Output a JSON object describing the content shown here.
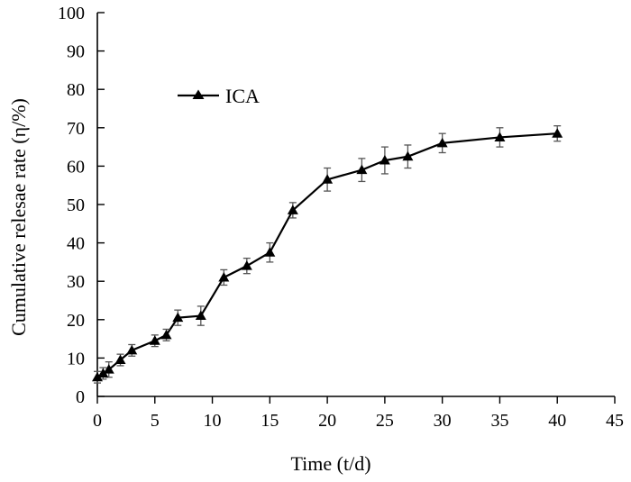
{
  "chart_data": {
    "type": "line",
    "title": "",
    "xlabel": "Time (t/d)",
    "ylabel": "Cumulative relesae rate (η/%)",
    "xlim": [
      0,
      45
    ],
    "ylim": [
      0,
      100
    ],
    "xticks": [
      0,
      5,
      10,
      15,
      20,
      25,
      30,
      35,
      40,
      45
    ],
    "yticks": [
      0,
      10,
      20,
      30,
      40,
      50,
      60,
      70,
      80,
      90,
      100
    ],
    "xtick_labels": [
      "0",
      "5",
      "10",
      "15",
      "20",
      "25",
      "30",
      "35",
      "40",
      "45"
    ],
    "ytick_labels": [
      "0",
      "10",
      "20",
      "30",
      "40",
      "50",
      "60",
      "70",
      "80",
      "90",
      "100"
    ],
    "legend": {
      "position": "top-left",
      "entries": [
        "ICA"
      ]
    },
    "grid": false,
    "series": [
      {
        "name": "ICA",
        "color": "#000000",
        "marker": "triangle",
        "x": [
          0,
          0.5,
          1,
          2,
          3,
          5,
          6,
          7,
          9,
          11,
          13,
          15,
          17,
          20,
          23,
          25,
          27,
          30,
          35,
          40
        ],
        "y": [
          5,
          6,
          7,
          9.5,
          12,
          14.5,
          16,
          20.5,
          21,
          31,
          34,
          37.5,
          48.5,
          56.5,
          59,
          61.5,
          62.5,
          66,
          67.5,
          68.5
        ],
        "error": [
          1.5,
          1.5,
          2.0,
          1.5,
          1.5,
          1.5,
          1.5,
          2.0,
          2.5,
          2.0,
          2.0,
          2.5,
          2.0,
          3.0,
          3.0,
          3.5,
          3.0,
          2.5,
          2.5,
          2.0
        ]
      }
    ]
  }
}
